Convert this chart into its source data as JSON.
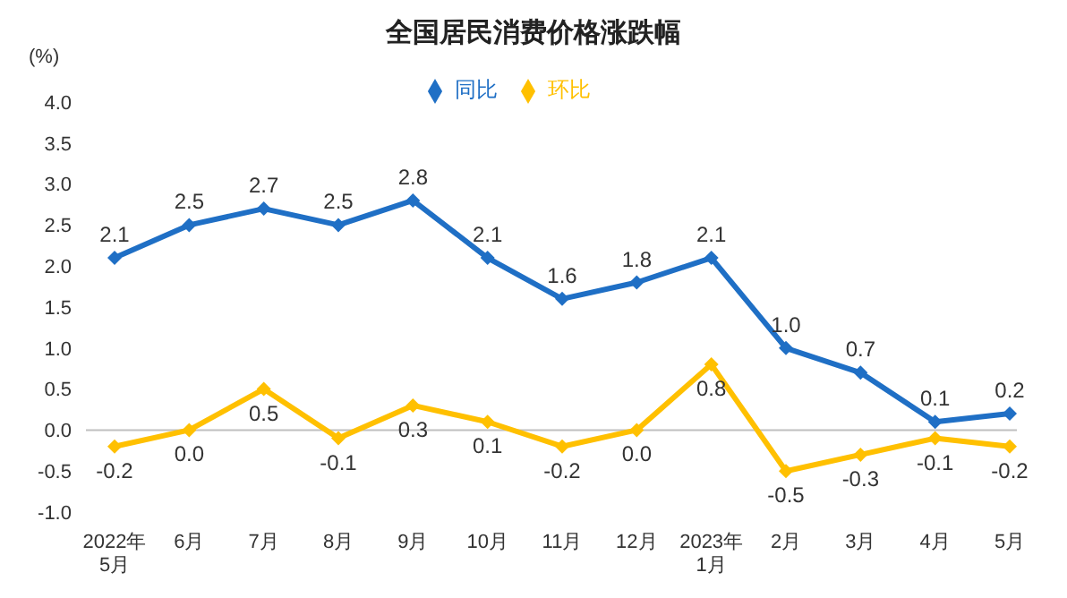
{
  "chart_data": {
    "type": "line",
    "title": "全国居民消费价格涨跌幅",
    "ylabel": "(%)",
    "categories": [
      "2022年\n5月",
      "6月",
      "7月",
      "8月",
      "9月",
      "10月",
      "11月",
      "12月",
      "2023年\n1月",
      "2月",
      "3月",
      "4月",
      "5月"
    ],
    "series": [
      {
        "name": "同比",
        "color": "#1f6fc5",
        "values": [
          2.1,
          2.5,
          2.7,
          2.5,
          2.8,
          2.1,
          1.6,
          1.8,
          2.1,
          1.0,
          0.7,
          0.1,
          0.2
        ],
        "value_labels": [
          "2.1",
          "2.5",
          "2.7",
          "2.5",
          "2.8",
          "2.1",
          "1.6",
          "1.8",
          "2.1",
          "1.0",
          "0.7",
          "0.1",
          "0.2"
        ]
      },
      {
        "name": "环比",
        "color": "#ffc000",
        "values": [
          -0.2,
          0.0,
          0.5,
          -0.1,
          0.3,
          0.1,
          -0.2,
          0.0,
          0.8,
          -0.5,
          -0.3,
          -0.1,
          -0.2
        ],
        "value_labels": [
          "-0.2",
          "0.0",
          "0.5",
          "-0.1",
          "0.3",
          "0.1",
          "-0.2",
          "0.0",
          "0.8",
          "-0.5",
          "-0.3",
          "-0.1",
          "-0.2"
        ]
      }
    ],
    "ylim": [
      -1,
      4
    ],
    "yticks": [
      {
        "value": -1,
        "label": "-1.0"
      },
      {
        "value": -0.5,
        "label": "-0.5"
      },
      {
        "value": 0,
        "label": "0.0"
      },
      {
        "value": 0.5,
        "label": "0.5"
      },
      {
        "value": 1,
        "label": "1.0"
      },
      {
        "value": 1.5,
        "label": "1.5"
      },
      {
        "value": 2,
        "label": "2.0"
      },
      {
        "value": 2.5,
        "label": "2.5"
      },
      {
        "value": 3,
        "label": "3.0"
      },
      {
        "value": 3.5,
        "label": "3.5"
      },
      {
        "value": 4,
        "label": "4.0"
      }
    ],
    "ref_lines": [
      {
        "axis": "y",
        "value": 0,
        "color": "#bfbfbf"
      }
    ],
    "legend": "top",
    "marker": "diamond",
    "line_style": "solid"
  }
}
